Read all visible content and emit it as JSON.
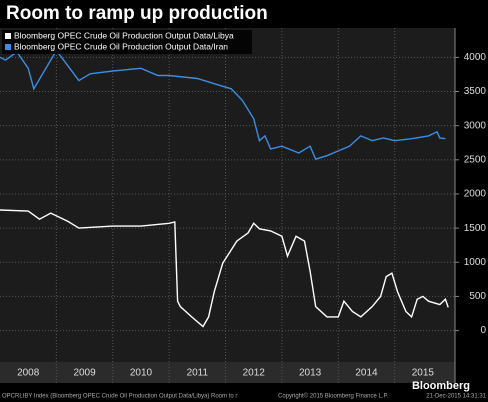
{
  "chart_data": {
    "type": "line",
    "title": "Room to ramp up production",
    "series": [
      {
        "name": "Bloomberg OPEC Crude Oil Production Output Data/Libya",
        "color": "#ffffff",
        "x": [
          2008.0,
          2008.5,
          2008.7,
          2008.9,
          2009.2,
          2009.4,
          2010.0,
          2010.5,
          2011.0,
          2011.1,
          2011.15,
          2011.2,
          2011.4,
          2011.6,
          2011.7,
          2011.8,
          2011.95,
          2012.2,
          2012.4,
          2012.5,
          2012.6,
          2012.8,
          2013.0,
          2013.1,
          2013.25,
          2013.4,
          2013.5,
          2013.6,
          2013.8,
          2014.0,
          2014.1,
          2014.25,
          2014.4,
          2014.6,
          2014.75,
          2014.85,
          2014.95,
          2015.05,
          2015.2,
          2015.3,
          2015.4,
          2015.5,
          2015.6,
          2015.8,
          2015.9,
          2015.95
        ],
        "values": [
          1765,
          1750,
          1630,
          1720,
          1600,
          1500,
          1530,
          1530,
          1570,
          1590,
          430,
          350,
          200,
          60,
          200,
          570,
          985,
          1310,
          1430,
          1570,
          1490,
          1460,
          1380,
          1090,
          1380,
          1310,
          870,
          350,
          200,
          200,
          430,
          280,
          200,
          350,
          500,
          790,
          840,
          570,
          280,
          200,
          460,
          500,
          430,
          380,
          460,
          340
        ]
      },
      {
        "name": "Bloomberg OPEC Crude Oil Production Output Data/Iran",
        "color": "#3a8ee6",
        "x": [
          2008.0,
          2008.1,
          2008.3,
          2008.5,
          2008.6,
          2008.9,
          2009.0,
          2009.2,
          2009.4,
          2009.6,
          2010.0,
          2010.5,
          2010.8,
          2011.0,
          2011.5,
          2011.9,
          2012.1,
          2012.3,
          2012.5,
          2012.6,
          2012.7,
          2012.8,
          2013.0,
          2013.3,
          2013.5,
          2013.6,
          2013.8,
          2014.0,
          2014.2,
          2014.4,
          2014.6,
          2014.8,
          2015.0,
          2015.3,
          2015.6,
          2015.75,
          2015.8,
          2015.9
        ],
        "values": [
          4000,
          3960,
          4080,
          3840,
          3540,
          3960,
          4100,
          3880,
          3660,
          3760,
          3800,
          3840,
          3735,
          3735,
          3690,
          3590,
          3540,
          3370,
          3100,
          2780,
          2850,
          2660,
          2700,
          2600,
          2700,
          2510,
          2560,
          2630,
          2700,
          2850,
          2780,
          2820,
          2780,
          2810,
          2850,
          2910,
          2820,
          2810
        ]
      }
    ],
    "xlim": [
      2008.0,
      2016.07
    ],
    "xticks": [
      {
        "value": 2008.5,
        "label": "2008"
      },
      {
        "value": 2009.5,
        "label": "2009"
      },
      {
        "value": 2010.5,
        "label": "2010"
      },
      {
        "value": 2011.5,
        "label": "2011"
      },
      {
        "value": 2012.5,
        "label": "2012"
      },
      {
        "value": 2013.5,
        "label": "2013"
      },
      {
        "value": 2014.5,
        "label": "2014"
      },
      {
        "value": 2015.5,
        "label": "2015"
      }
    ],
    "ylim": [
      -460,
      4430
    ],
    "yticks": [
      0,
      500,
      1000,
      1500,
      2000,
      2500,
      3000,
      3500,
      4000
    ],
    "grid": true,
    "legend": "upper left",
    "footer": {
      "left": "OPCRLIBY Index (Bloomberg OPEC Crude Oil Production Output Data/Libya) Room to r",
      "middle": "Copyright© 2015 Bloomberg Finance L.P.",
      "right": "21-Dec-2015 14:31:31"
    },
    "brand": "Bloomberg"
  }
}
